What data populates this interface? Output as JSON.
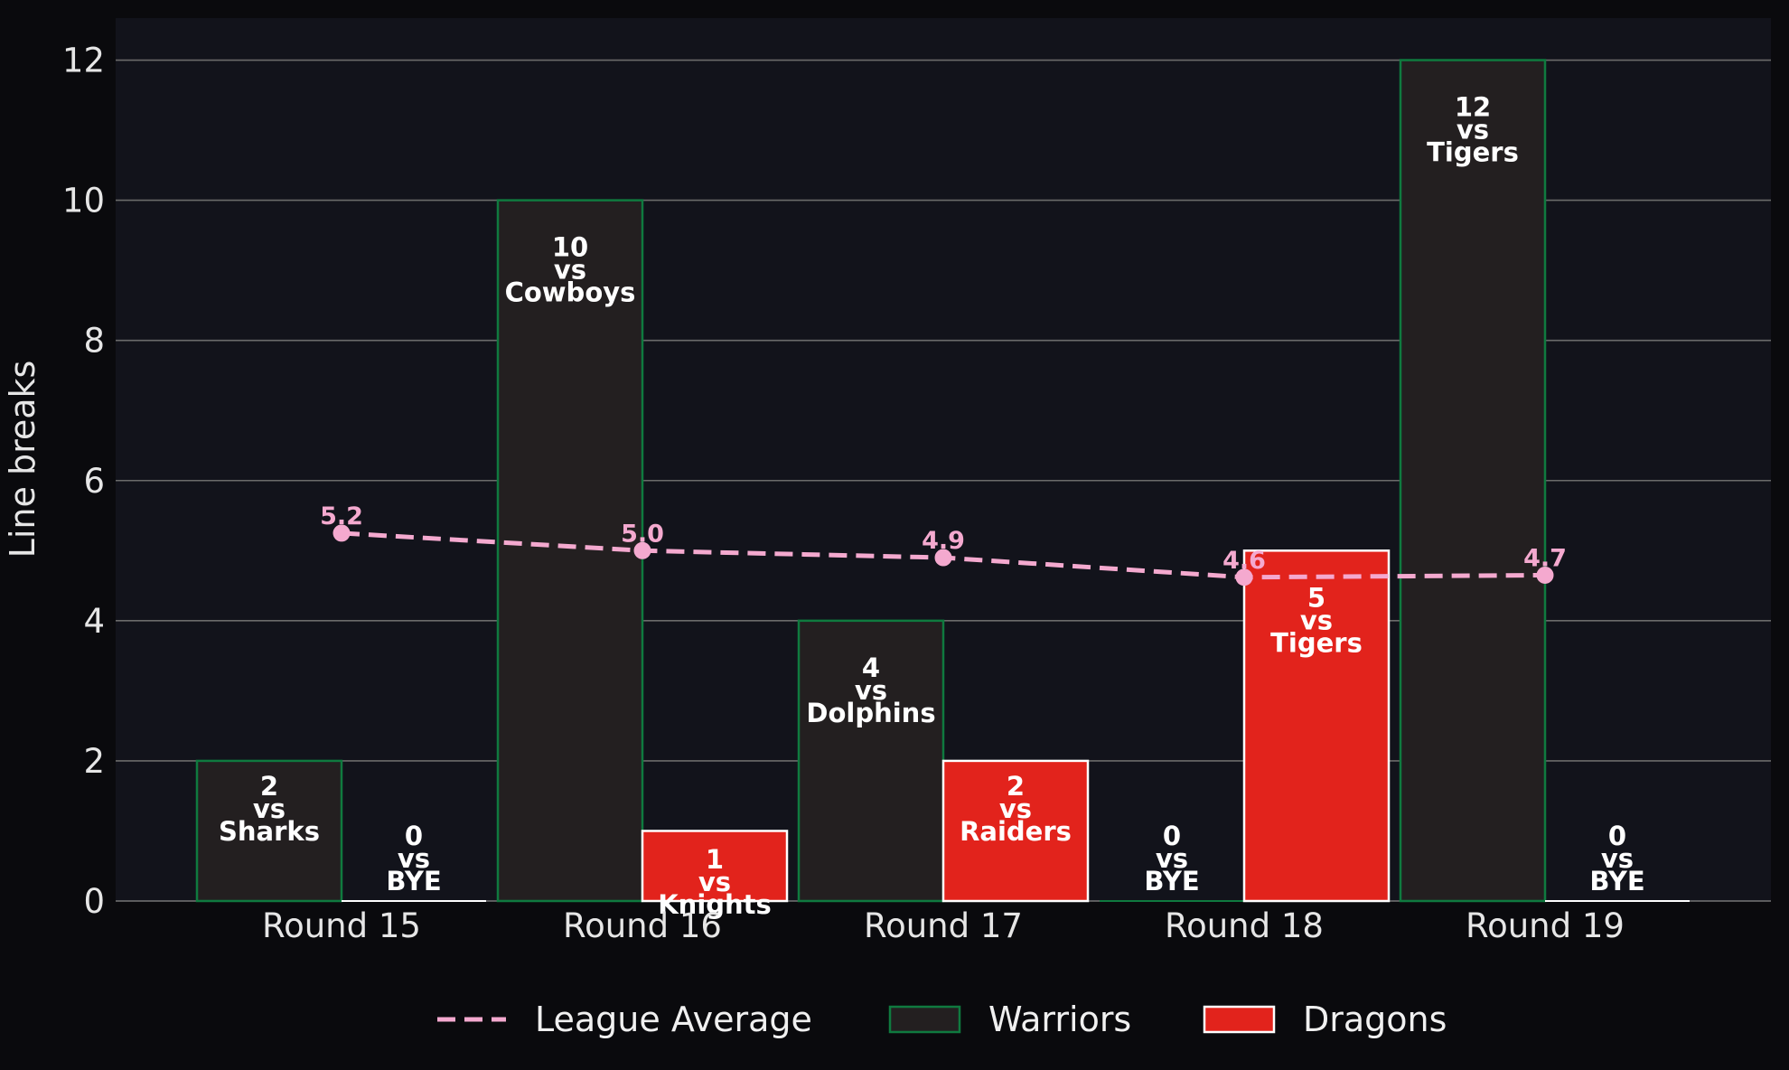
{
  "chart_data": {
    "type": "bar",
    "ylabel": "Line breaks",
    "ylim": [
      0,
      12.6
    ],
    "yticks": [
      0,
      2,
      4,
      6,
      8,
      10,
      12
    ],
    "grid": true,
    "legend_position": "bottom-center",
    "categories": [
      "Round 15",
      "Round 16",
      "Round 17",
      "Round 18",
      "Round 19"
    ],
    "series": [
      {
        "name": "Warriors",
        "type": "bar",
        "color": "#231f20",
        "edge_color": "#0f7a3f",
        "values": [
          2,
          10,
          4,
          0,
          12
        ],
        "opponents": [
          "Sharks",
          "Cowboys",
          "Dolphins",
          "BYE",
          "Tigers"
        ]
      },
      {
        "name": "Dragons",
        "type": "bar",
        "color": "#e2231c",
        "edge_color": "#ffffff",
        "values": [
          0,
          1,
          2,
          5,
          0
        ],
        "opponents": [
          "BYE",
          "Knights",
          "Raiders",
          "Tigers",
          "BYE"
        ]
      },
      {
        "name": "League Average",
        "type": "line",
        "style": "dashed",
        "color": "#f4a9cf",
        "values": [
          5.25,
          5.0,
          4.9,
          4.62,
          4.65
        ],
        "labels": [
          "5.2",
          "5.0",
          "4.9",
          "4.6",
          "4.7"
        ]
      }
    ],
    "vs_text": "vs"
  },
  "colors": {
    "page_background": "#0a0a0d",
    "plot_background": "#12131b",
    "grid": "#6b6b6b",
    "text": "#e6e6e6"
  }
}
